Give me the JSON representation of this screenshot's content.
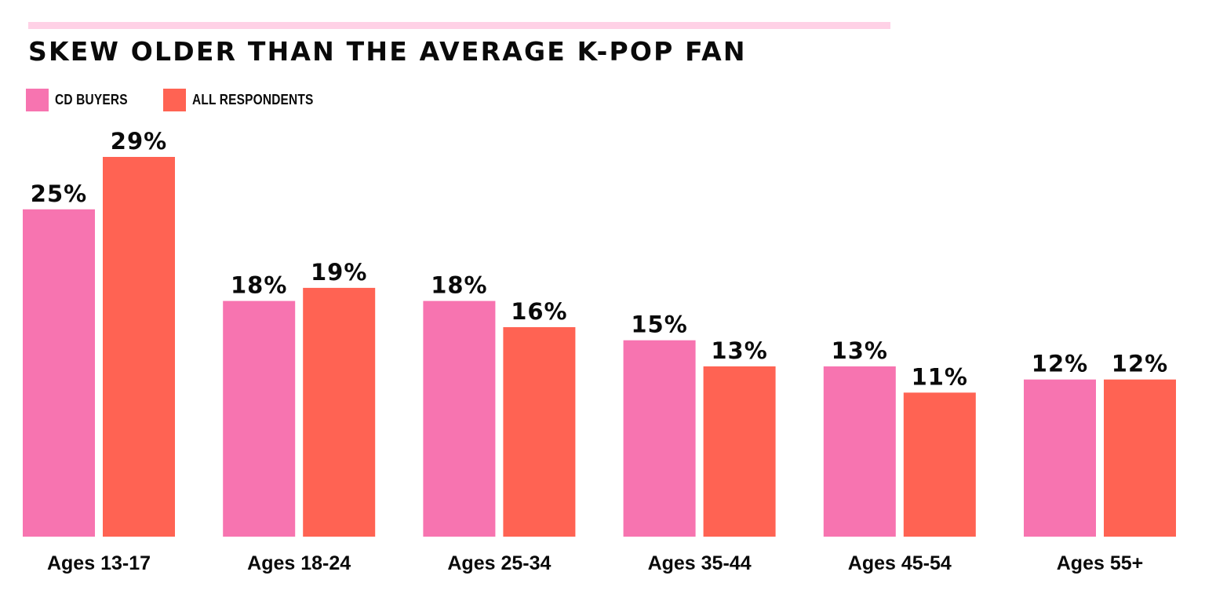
{
  "chart_data": {
    "type": "bar",
    "title": "SKEW OLDER THAN THE AVERAGE K-POP FAN",
    "categories": [
      "Ages 13-17",
      "Ages 18-24",
      "Ages 25-34",
      "Ages 35-44",
      "Ages 45-54",
      "Ages 55+"
    ],
    "series": [
      {
        "name": "CD BUYERS",
        "color": "#f774b0",
        "values": [
          25,
          18,
          18,
          15,
          13,
          12
        ],
        "labels": [
          "25%",
          "18%",
          "18%",
          "15%",
          "13%",
          "12%"
        ]
      },
      {
        "name": "ALL RESPONDENTS",
        "color": "#ff6353",
        "values": [
          29,
          19,
          16,
          13,
          11,
          12
        ],
        "labels": [
          "29%",
          "19%",
          "16%",
          "13%",
          "11%",
          "12%"
        ]
      }
    ],
    "xlabel": "",
    "ylabel": "",
    "ylim": [
      0,
      29
    ],
    "grid": false,
    "legend_position": "top-left",
    "accent_color": "#ffd1e6"
  }
}
